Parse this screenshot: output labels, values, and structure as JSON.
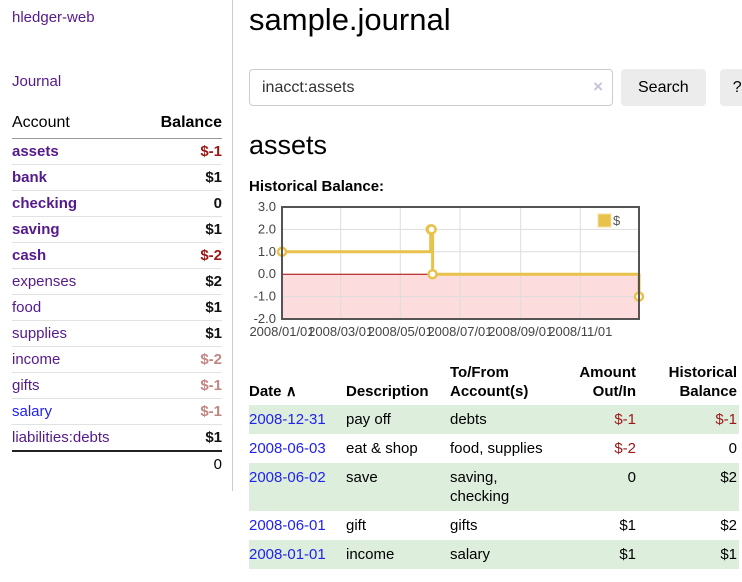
{
  "app": {
    "title": "hledger-web"
  },
  "sidebar": {
    "journal_link": "Journal",
    "table": {
      "account_header": "Account",
      "balance_header": "Balance"
    },
    "accounts": [
      {
        "name": "assets",
        "level": 1,
        "bold": true,
        "balance": "$-1",
        "balance_style": "neg-strong",
        "link_style": "purple"
      },
      {
        "name": "bank",
        "level": 2,
        "bold": true,
        "balance": "$1",
        "balance_style": "pos",
        "link_style": "purple"
      },
      {
        "name": "checking",
        "level": 3,
        "bold": true,
        "balance": "0",
        "balance_style": "pos",
        "link_style": "purple"
      },
      {
        "name": "saving",
        "level": 3,
        "bold": true,
        "balance": "$1",
        "balance_style": "pos",
        "link_style": "purple"
      },
      {
        "name": "cash",
        "level": 2,
        "bold": true,
        "balance": "$-2",
        "balance_style": "neg-strong",
        "link_style": "purple"
      },
      {
        "name": "expenses",
        "level": 1,
        "bold": false,
        "balance": "$2",
        "balance_style": "pos",
        "link_style": "purple"
      },
      {
        "name": "food",
        "level": 2,
        "bold": false,
        "balance": "$1",
        "balance_style": "pos",
        "link_style": "purple"
      },
      {
        "name": "supplies",
        "level": 2,
        "bold": false,
        "balance": "$1",
        "balance_style": "pos",
        "link_style": "purple"
      },
      {
        "name": "income",
        "level": 1,
        "bold": false,
        "balance": "$-2",
        "balance_style": "neg-soft",
        "link_style": "purple"
      },
      {
        "name": "gifts",
        "level": 2,
        "bold": false,
        "balance": "$-1",
        "balance_style": "neg-soft",
        "link_style": "purple"
      },
      {
        "name": "salary",
        "level": 2,
        "bold": false,
        "balance": "$-1",
        "balance_style": "neg-soft",
        "link_style": "blue"
      },
      {
        "name": "liabilities:debts",
        "level": 1,
        "bold": false,
        "balance": "$1",
        "balance_style": "pos",
        "link_style": "purple"
      }
    ],
    "total": "0"
  },
  "main": {
    "title": "sample.journal",
    "search": {
      "value": "inacct:assets",
      "clear_icon": "×",
      "button": "Search",
      "help_button": "?"
    },
    "account_heading": "assets",
    "chart_heading": "Historical Balance:"
  },
  "chart_data": {
    "type": "line",
    "title": "Historical Balance:",
    "style": "step line with markers, negative region shaded",
    "series": [
      {
        "name": "$",
        "color": "#e8c24a",
        "points": [
          [
            "2008-01-01",
            1
          ],
          [
            "2008-06-01",
            2
          ],
          [
            "2008-06-02",
            2
          ],
          [
            "2008-06-03",
            0
          ],
          [
            "2008-12-31",
            -1
          ]
        ],
        "points_days": [
          [
            0,
            1
          ],
          [
            152,
            2
          ],
          [
            153,
            2
          ],
          [
            154,
            0
          ],
          [
            365,
            -1
          ]
        ]
      }
    ],
    "x": {
      "lim": [
        0,
        365
      ],
      "ticks": [
        {
          "pos": 0,
          "label": "2008/01/01"
        },
        {
          "pos": 60,
          "label": "2008/03/01"
        },
        {
          "pos": 121,
          "label": "2008/05/01"
        },
        {
          "pos": 182,
          "label": "2008/07/01"
        },
        {
          "pos": 244,
          "label": "2008/09/01"
        },
        {
          "pos": 305,
          "label": "2008/11/01"
        }
      ]
    },
    "y": {
      "lim": [
        -2,
        3
      ],
      "ticks": [
        3,
        2,
        1,
        0,
        -1,
        -2
      ],
      "tick_labels": [
        "3.0",
        "2.0",
        "1.0",
        "0.0",
        "-1.0",
        "-2.0"
      ]
    },
    "grid": true,
    "negative_region_fill": "#fcdcdc",
    "zero_line_color": "#aa0000",
    "border_color": "#545454",
    "grid_color": "#dddddd",
    "legend": {
      "label": "$",
      "position": "top-right"
    }
  },
  "transactions": {
    "headers": {
      "date": "Date",
      "sort_icon": "∧",
      "description": "Description",
      "accounts": "To/From Account(s)",
      "amount": "Amount Out/In",
      "balance": "Historical Balance"
    },
    "rows": [
      {
        "date": "2008-12-31",
        "description": "pay off",
        "accounts": "debts",
        "amount": "$-1",
        "balance": "$-1",
        "amount_style": "neg",
        "balance_style": "pos-amt"
      },
      {
        "date": "2008-06-03",
        "description": "eat & shop",
        "accounts": "food, supplies",
        "amount": "$-2",
        "balance": "0",
        "amount_style": "neg",
        "balance_style": "pos-amt"
      },
      {
        "date": "2008-06-02",
        "description": "save",
        "accounts": "saving, checking",
        "amount": "0",
        "balance": "$2",
        "amount_style": "pos-amt",
        "balance_style": "pos-amt"
      },
      {
        "date": "2008-06-01",
        "description": "gift",
        "accounts": "gifts",
        "amount": "$1",
        "balance": "$2",
        "amount_style": "pos-amt",
        "balance_style": "pos-amt"
      },
      {
        "date": "2008-01-01",
        "description": "income",
        "accounts": "salary",
        "amount": "$1",
        "balance": "$1",
        "amount_style": "pos-amt",
        "balance_style": "pos-amt"
      }
    ],
    "row_balance_styles": [
      "neg",
      "pos-amt",
      "pos-amt",
      "pos-amt",
      "pos-amt"
    ]
  }
}
